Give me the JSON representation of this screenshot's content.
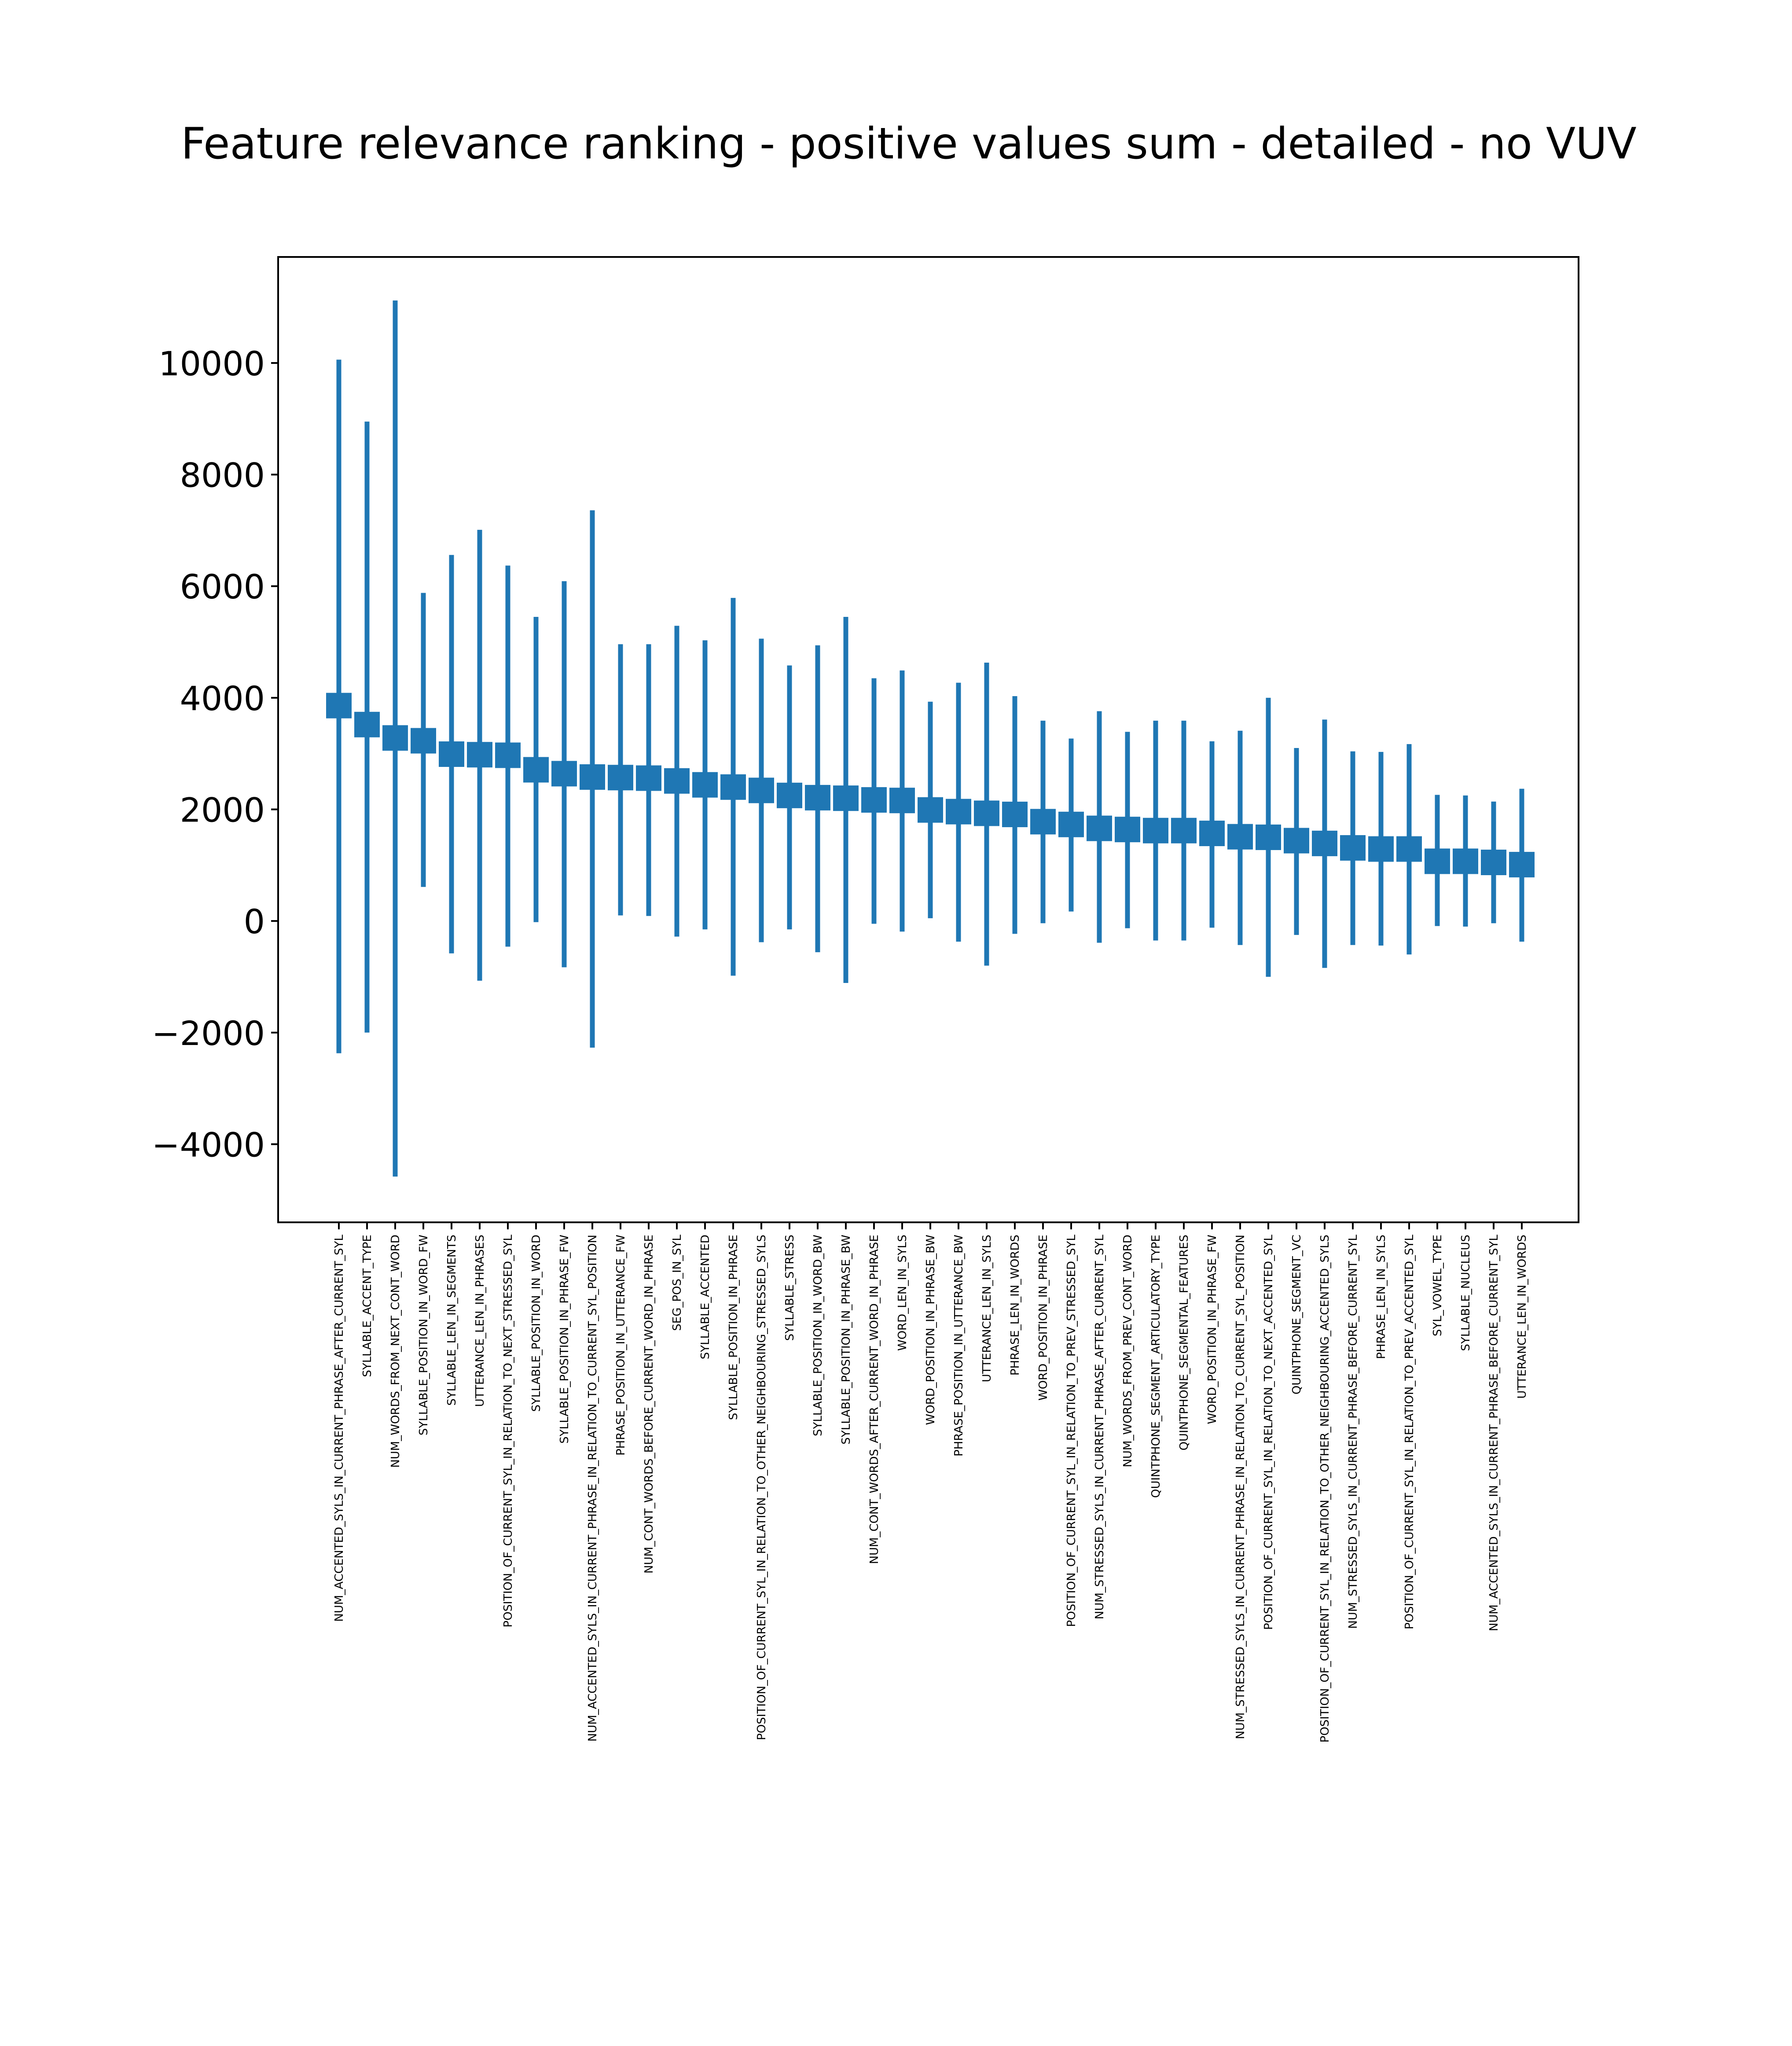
{
  "chart_data": {
    "type": "errorbar",
    "title": "Feature relevance ranking - positive values sum - detailed - no VUV",
    "xlabel": "",
    "ylabel": "",
    "ylim": [
      -5400,
      11900
    ],
    "yticks": [
      -4000,
      -2000,
      0,
      2000,
      4000,
      6000,
      8000,
      10000
    ],
    "grid": false,
    "color": "#1f77b4",
    "categories": [
      "NUM_ACCENTED_SYLS_IN_CURRENT_PHRASE_AFTER_CURRENT_SYL",
      "SYLLABLE_ACCENT_TYPE",
      "NUM_WORDS_FROM_NEXT_CONT_WORD",
      "SYLLABLE_POSITION_IN_WORD_FW",
      "SYLLABLE_LEN_IN_SEGMENTS",
      "UTTERANCE_LEN_IN_PHRASES",
      "POSITION_OF_CURRENT_SYL_IN_RELATION_TO_NEXT_STRESSED_SYL",
      "SYLLABLE_POSITION_IN_WORD",
      "SYLLABLE_POSITION_IN_PHRASE_FW",
      "NUM_ACCENTED_SYLS_IN_CURRENT_PHRASE_IN_RELATION_TO_CURRENT_SYL_POSITION",
      "PHRASE_POSITION_IN_UTTERANCE_FW",
      "NUM_CONT_WORDS_BEFORE_CURRENT_WORD_IN_PHRASE",
      "SEG_POS_IN_SYL",
      "SYLLABLE_ACCENTED",
      "SYLLABLE_POSITION_IN_PHRASE",
      "POSITION_OF_CURRENT_SYL_IN_RELATION_TO_OTHER_NEIGHBOURING_STRESSED_SYLS",
      "SYLLABLE_STRESS",
      "SYLLABLE_POSITION_IN_WORD_BW",
      "SYLLABLE_POSITION_IN_PHRASE_BW",
      "NUM_CONT_WORDS_AFTER_CURRENT_WORD_IN_PHRASE",
      "WORD_LEN_IN_SYLS",
      "WORD_POSITION_IN_PHRASE_BW",
      "PHRASE_POSITION_IN_UTTERANCE_BW",
      "UTTERANCE_LEN_IN_SYLS",
      "PHRASE_LEN_IN_WORDS",
      "WORD_POSITION_IN_PHRASE",
      "POSITION_OF_CURRENT_SYL_IN_RELATION_TO_PREV_STRESSED_SYL",
      "NUM_STRESSED_SYLS_IN_CURRENT_PHRASE_AFTER_CURRENT_SYL",
      "NUM_WORDS_FROM_PREV_CONT_WORD",
      "QUINTPHONE_SEGMENT_ARTICULATORY_TYPE",
      "QUINTPHONE_SEGMENTAL_FEATURES",
      "WORD_POSITION_IN_PHRASE_FW",
      "NUM_STRESSED_SYLS_IN_CURRENT_PHRASE_IN_RELATION_TO_CURRENT_SYL_POSITION",
      "POSITION_OF_CURRENT_SYL_IN_RELATION_TO_NEXT_ACCENTED_SYL",
      "QUINTPHONE_SEGMENT_VC",
      "POSITION_OF_CURRENT_SYL_IN_RELATION_TO_OTHER_NEIGHBOURING_ACCENTED_SYLS",
      "NUM_STRESSED_SYLS_IN_CURRENT_PHRASE_BEFORE_CURRENT_SYL",
      "PHRASE_LEN_IN_SYLS",
      "POSITION_OF_CURRENT_SYL_IN_RELATION_TO_PREV_ACCENTED_SYL",
      "SYL_VOWEL_TYPE",
      "SYLLABLE_NUCLEUS",
      "NUM_ACCENTED_SYLS_IN_CURRENT_PHRASE_BEFORE_CURRENT_SYL",
      "UTTERANCE_LEN_IN_WORDS"
    ],
    "values": [
      3860,
      3520,
      3280,
      3230,
      2990,
      2980,
      2970,
      2710,
      2640,
      2580,
      2570,
      2560,
      2510,
      2440,
      2400,
      2340,
      2250,
      2210,
      2200,
      2170,
      2160,
      1990,
      1960,
      1930,
      1910,
      1780,
      1730,
      1660,
      1640,
      1620,
      1620,
      1570,
      1510,
      1500,
      1440,
      1390,
      1310,
      1290,
      1290,
      1070,
      1070,
      1050,
      1010
    ],
    "err_low": [
      -2370,
      -2000,
      -4580,
      610,
      -580,
      -1070,
      -460,
      -20,
      -830,
      -2270,
      100,
      90,
      -280,
      -150,
      -980,
      -380,
      -150,
      -560,
      -1110,
      -50,
      -190,
      50,
      -370,
      -800,
      -230,
      -40,
      170,
      -390,
      -130,
      -350,
      -350,
      -120,
      -430,
      -1000,
      -250,
      -840,
      -430,
      -440,
      -600,
      -90,
      -100,
      -40,
      -370
    ],
    "err_high": [
      10060,
      8950,
      11120,
      5880,
      6560,
      7010,
      6370,
      5450,
      6090,
      7360,
      4960,
      4960,
      5290,
      5030,
      5790,
      5060,
      4580,
      4940,
      5450,
      4350,
      4490,
      3930,
      4270,
      4630,
      4030,
      3590,
      3270,
      3760,
      3390,
      3590,
      3590,
      3220,
      3410,
      4000,
      3100,
      3610,
      3040,
      3030,
      3170,
      2260,
      2250,
      2140,
      2370
    ]
  }
}
